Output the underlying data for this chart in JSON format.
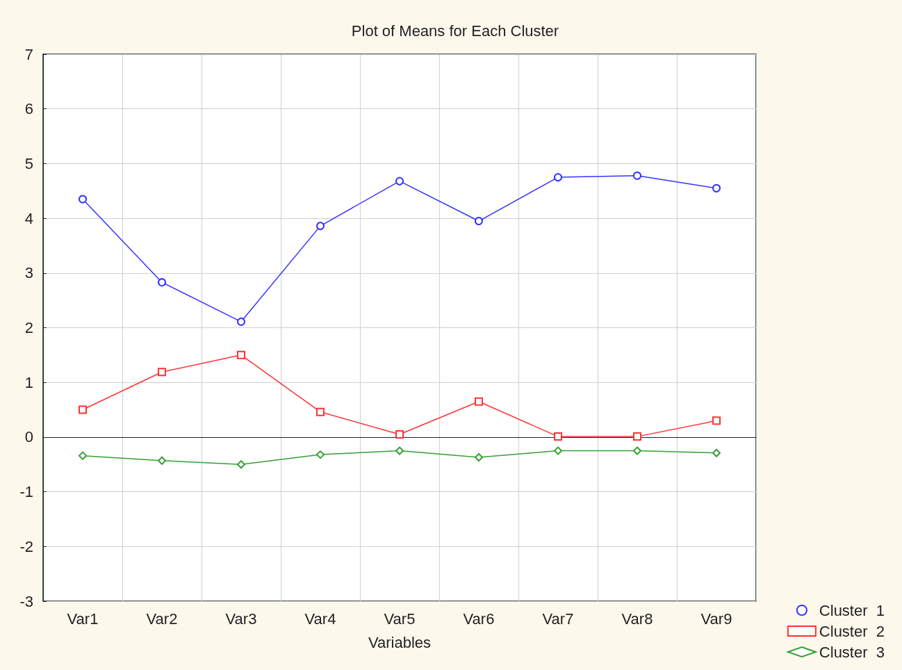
{
  "chart_data": {
    "type": "line",
    "title": "Plot of Means for Each Cluster",
    "xlabel": "Variables",
    "categories": [
      "Var1",
      "Var2",
      "Var3",
      "Var4",
      "Var5",
      "Var6",
      "Var7",
      "Var8",
      "Var9"
    ],
    "series": [
      {
        "name": "Cluster  1",
        "color": "#3333ff",
        "marker": "circle",
        "values": [
          4.35,
          2.83,
          2.11,
          3.86,
          4.68,
          3.95,
          4.75,
          4.78,
          4.55
        ]
      },
      {
        "name": "Cluster  2",
        "color": "#ff3333",
        "marker": "square",
        "values": [
          0.5,
          1.19,
          1.5,
          0.46,
          0.05,
          0.65,
          0.01,
          0.01,
          0.3
        ]
      },
      {
        "name": "Cluster  3",
        "color": "#33a033",
        "marker": "diamond",
        "values": [
          -0.34,
          -0.43,
          -0.5,
          -0.32,
          -0.25,
          -0.37,
          -0.25,
          -0.25,
          -0.29
        ]
      }
    ],
    "ylim": [
      -3,
      7
    ],
    "yticks": [
      -3,
      -2,
      -1,
      0,
      1,
      2,
      3,
      4,
      5,
      6,
      7
    ],
    "grid": true,
    "legend": "bottom right",
    "line_style": "solid"
  }
}
